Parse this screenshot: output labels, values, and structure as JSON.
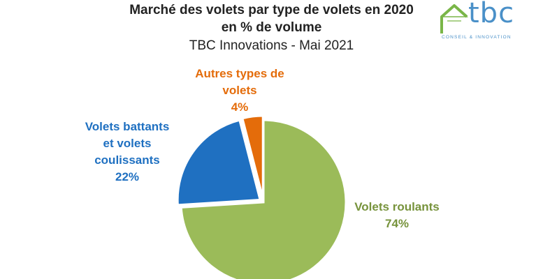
{
  "title": {
    "line1": "Marché des volets par type de volets en 2020",
    "line2": "en % de volume",
    "line3": "TBC Innovations - Mai 2021"
  },
  "logo": {
    "name": "tbc",
    "tagline": "CONSEIL & INNOVATION",
    "colors": {
      "house": "#7ab648",
      "text": "#4a90c8"
    }
  },
  "chart_data": {
    "type": "pie",
    "title": "Marché des volets par type de volets en 2020 en % de volume",
    "subtitle": "TBC Innovations - Mai 2021",
    "slices": [
      {
        "key": "roulants",
        "label_lines": [
          "Volets roulants"
        ],
        "pct_label": "74%",
        "value": 74,
        "color": "#9bbb59",
        "label_color": "#77933c",
        "exploded": false
      },
      {
        "key": "battants",
        "label_lines": [
          "Volets battants",
          "et volets",
          "coulissants"
        ],
        "pct_label": "22%",
        "value": 22,
        "color": "#1f70c1",
        "label_color": "#1f70c1",
        "exploded": true
      },
      {
        "key": "autres",
        "label_lines": [
          "Autres types de",
          "volets"
        ],
        "pct_label": "4%",
        "value": 4,
        "color": "#e46c0a",
        "label_color": "#e46c0a",
        "exploded": true
      }
    ]
  }
}
